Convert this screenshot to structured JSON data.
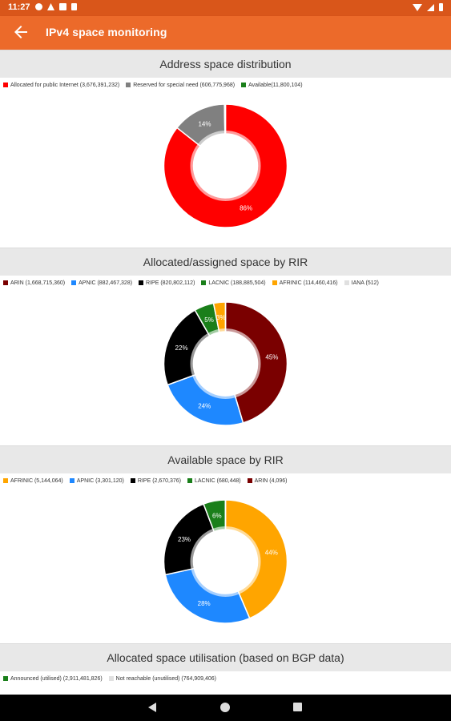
{
  "status_bar": {
    "time": "11:27",
    "left_icons": [
      "gear-icon",
      "warning-icon",
      "image-icon",
      "sd-card-icon"
    ],
    "right_icons": [
      "wifi-icon",
      "signal-icon",
      "battery-icon"
    ]
  },
  "app_bar": {
    "title": "IPv4 space monitoring",
    "back_icon": "arrow-left-icon",
    "background": "#ec6a2a"
  },
  "sections": [
    {
      "title": "Address space distribution",
      "legend": [
        {
          "label": "Allocated for public Internet (3,676,391,232)",
          "color": "#ff0000"
        },
        {
          "label": "Reserved for special need (606,775,968)",
          "color": "#808080"
        },
        {
          "label": "Available(11,800,104)",
          "color": "#1a7f1a"
        }
      ]
    },
    {
      "title": "Allocated/assigned space by RIR",
      "legend": [
        {
          "label": "ARIN (1,668,715,360)",
          "color": "#7a0000"
        },
        {
          "label": "APNIC (882,467,328)",
          "color": "#1e88ff"
        },
        {
          "label": "RIPE (820,802,112)",
          "color": "#000000"
        },
        {
          "label": "LACNIC (188,885,504)",
          "color": "#1a7f1a"
        },
        {
          "label": "AFRINIC (114,460,416)",
          "color": "#ffa500"
        },
        {
          "label": "IANA (512)",
          "color": "#e0e0e0"
        }
      ]
    },
    {
      "title": "Available space by RIR",
      "legend": [
        {
          "label": "AFRINIC (5,144,064)",
          "color": "#ffa500"
        },
        {
          "label": "APNIC (3,301,120)",
          "color": "#1e88ff"
        },
        {
          "label": "RIPE (2,670,376)",
          "color": "#000000"
        },
        {
          "label": "LACNIC (680,448)",
          "color": "#1a7f1a"
        },
        {
          "label": "ARIN (4,096)",
          "color": "#7a0000"
        }
      ]
    },
    {
      "title": "Allocated space utilisation (based on BGP data)",
      "legend": [
        {
          "label": "Announced (utilised) (2,911,481,826)",
          "color": "#1a7f1a"
        },
        {
          "label": "Not reachable (unutilised) (764,909,406)",
          "color": "#e0e0e0"
        }
      ]
    }
  ],
  "chart_data": [
    {
      "type": "pie",
      "title": "Address space distribution",
      "slices": [
        {
          "name": "Allocated for public Internet",
          "value": 3676391232,
          "label": "86%",
          "color": "#ff0000"
        },
        {
          "name": "Reserved for special need",
          "value": 606775968,
          "label": "14%",
          "color": "#808080"
        },
        {
          "name": "Available",
          "value": 11800104,
          "label": "",
          "color": "#1a7f1a"
        }
      ]
    },
    {
      "type": "pie",
      "title": "Allocated/assigned space by RIR",
      "slices": [
        {
          "name": "ARIN",
          "value": 1668715360,
          "label": "45%",
          "color": "#7a0000"
        },
        {
          "name": "APNIC",
          "value": 882467328,
          "label": "24%",
          "color": "#1e88ff"
        },
        {
          "name": "RIPE",
          "value": 820802112,
          "label": "22%",
          "color": "#000000"
        },
        {
          "name": "LACNIC",
          "value": 188885504,
          "label": "5%",
          "color": "#1a7f1a"
        },
        {
          "name": "AFRINIC",
          "value": 114460416,
          "label": "3%",
          "color": "#ffa500"
        },
        {
          "name": "IANA",
          "value": 512,
          "label": "",
          "color": "#e0e0e0"
        }
      ]
    },
    {
      "type": "pie",
      "title": "Available space by RIR",
      "slices": [
        {
          "name": "AFRINIC",
          "value": 5144064,
          "label": "44%",
          "color": "#ffa500"
        },
        {
          "name": "APNIC",
          "value": 3301120,
          "label": "28%",
          "color": "#1e88ff"
        },
        {
          "name": "RIPE",
          "value": 2670376,
          "label": "23%",
          "color": "#000000"
        },
        {
          "name": "LACNIC",
          "value": 680448,
          "label": "6%",
          "color": "#1a7f1a"
        },
        {
          "name": "ARIN",
          "value": 4096,
          "label": "",
          "color": "#7a0000"
        }
      ]
    }
  ],
  "nav_bar": {
    "icons": [
      "back-triangle-icon",
      "home-circle-icon",
      "recents-square-icon"
    ]
  }
}
